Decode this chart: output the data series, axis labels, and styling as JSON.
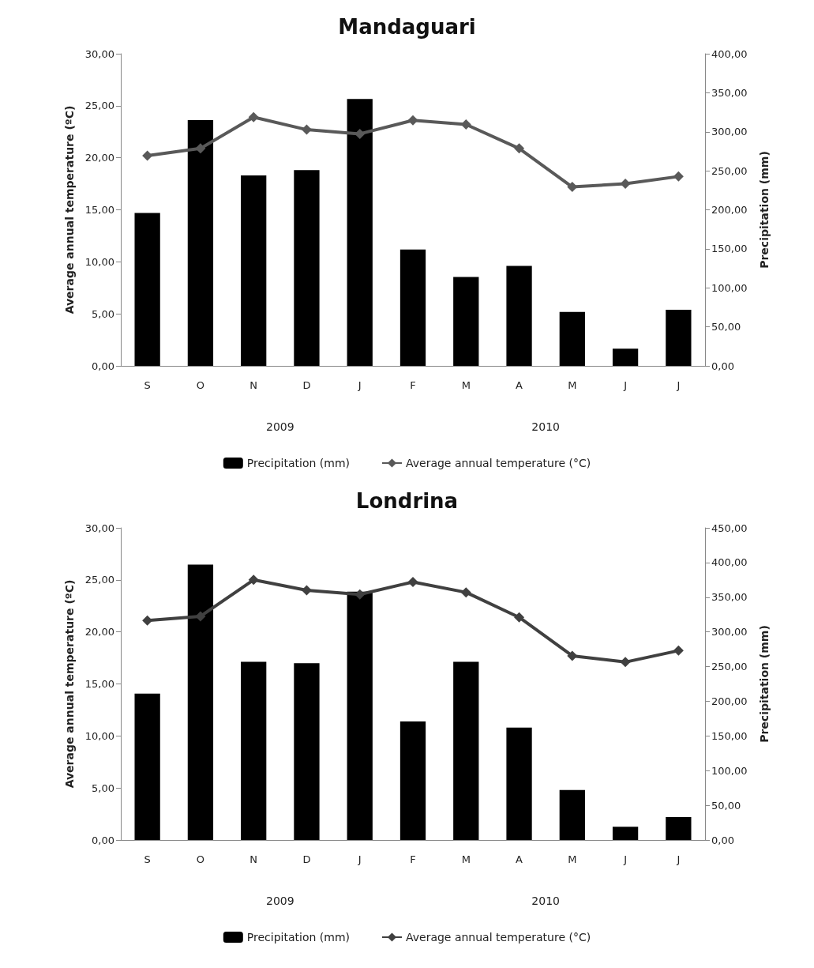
{
  "chart_data": [
    {
      "type": "bar",
      "title": "Mandaguari",
      "ylabel": "Average annual temperature (ºC)",
      "y2label": "Precipitation (mm)",
      "categories": [
        "S",
        "O",
        "N",
        "D",
        "J",
        "F",
        "M",
        "A",
        "M",
        "J",
        "J"
      ],
      "series": [
        {
          "name": "Precipitation (mm)",
          "axis": "y2",
          "color": "#000000",
          "values": [
            196,
            315,
            244,
            251,
            342,
            149,
            114,
            128,
            69,
            22,
            72
          ]
        },
        {
          "name": "Average annual temperature (°C)",
          "type": "line",
          "axis": "y",
          "color": "#595959",
          "marker": "diamond",
          "values": [
            20.2,
            20.9,
            23.9,
            22.7,
            22.3,
            23.6,
            23.2,
            20.9,
            17.2,
            17.5,
            18.2
          ]
        }
      ],
      "ylim": [
        0,
        30
      ],
      "yticks": [
        {
          "value": 0,
          "label": "0,00"
        },
        {
          "value": 5,
          "label": "5,00"
        },
        {
          "value": 10,
          "label": "10,00"
        },
        {
          "value": 15,
          "label": "15,00"
        },
        {
          "value": 20,
          "label": "20,00"
        },
        {
          "value": 25,
          "label": "25,00"
        },
        {
          "value": 30,
          "label": "30,00"
        }
      ],
      "y2lim": [
        0,
        400
      ],
      "y2ticks": [
        {
          "value": 0,
          "label": "0,00"
        },
        {
          "value": 50,
          "label": "50,00"
        },
        {
          "value": 100,
          "label": "100,00"
        },
        {
          "value": 150,
          "label": "150,00"
        },
        {
          "value": 200,
          "label": "200,00"
        },
        {
          "value": 250,
          "label": "250,00"
        },
        {
          "value": 300,
          "label": "300,00"
        },
        {
          "value": 350,
          "label": "350,00"
        },
        {
          "value": 400,
          "label": "400,00"
        }
      ],
      "annotations": [
        "2009",
        "2010"
      ],
      "legend": "bottom",
      "grid": false
    },
    {
      "type": "bar",
      "title": "Londrina",
      "ylabel": "Average annual temperature (ºC)",
      "y2label": "Precipitation (mm)",
      "categories": [
        "S",
        "O",
        "N",
        "D",
        "J",
        "F",
        "M",
        "A",
        "M",
        "J",
        "J"
      ],
      "series": [
        {
          "name": "Precipitation (mm)",
          "axis": "y2",
          "color": "#000000",
          "values": [
            211,
            397,
            257,
            255,
            358,
            171,
            257,
            162,
            72,
            19,
            33
          ]
        },
        {
          "name": "Average annual temperature (°C)",
          "type": "line",
          "axis": "y",
          "color": "#404040",
          "marker": "diamond",
          "values": [
            21.1,
            21.5,
            25.0,
            24.0,
            23.6,
            24.8,
            23.8,
            21.4,
            17.7,
            17.1,
            18.2
          ]
        }
      ],
      "ylim": [
        0,
        30
      ],
      "yticks": [
        {
          "value": 0,
          "label": "0,00"
        },
        {
          "value": 5,
          "label": "5,00"
        },
        {
          "value": 10,
          "label": "10,00"
        },
        {
          "value": 15,
          "label": "15,00"
        },
        {
          "value": 20,
          "label": "20,00"
        },
        {
          "value": 25,
          "label": "25,00"
        },
        {
          "value": 30,
          "label": "30,00"
        }
      ],
      "y2lim": [
        0,
        450
      ],
      "y2ticks": [
        {
          "value": 0,
          "label": "0,00"
        },
        {
          "value": 50,
          "label": "50,00"
        },
        {
          "value": 100,
          "label": "100,00"
        },
        {
          "value": 150,
          "label": "150,00"
        },
        {
          "value": 200,
          "label": "200,00"
        },
        {
          "value": 250,
          "label": "250,00"
        },
        {
          "value": 300,
          "label": "300,00"
        },
        {
          "value": 350,
          "label": "350,00"
        },
        {
          "value": 400,
          "label": "400,00"
        },
        {
          "value": 450,
          "label": "450,00"
        }
      ],
      "annotations": [
        "2009",
        "2010"
      ],
      "legend": "bottom",
      "grid": false
    }
  ]
}
